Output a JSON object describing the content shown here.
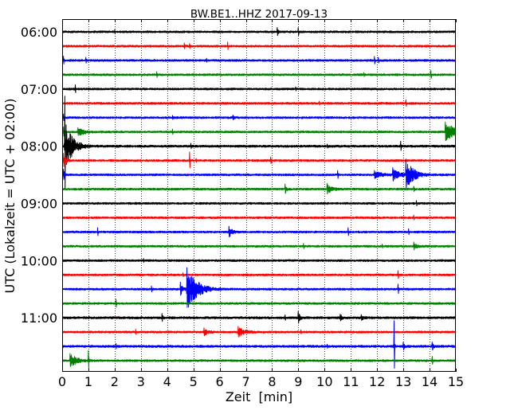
{
  "chart_data": {
    "type": "line",
    "title": "BW.BE1..HHZ 2017-09-13",
    "xlabel": "Zeit  [min]",
    "ylabel": "UTC (Lokalzeit = UTC + 02:00)",
    "xlim": [
      0,
      15
    ],
    "xticks": [
      0,
      1,
      2,
      3,
      4,
      5,
      6,
      7,
      8,
      9,
      10,
      11,
      12,
      13,
      14,
      15
    ],
    "yticks": [
      "06:00",
      "07:00",
      "08:00",
      "09:00",
      "10:00",
      "11:00"
    ],
    "grid": {
      "x": true,
      "y": false
    },
    "series": [
      {
        "color": "#000000",
        "noise": 0.07,
        "events": [
          {
            "t": 2.0,
            "amp": 0.15,
            "dur": 0.05
          },
          {
            "t": 8.2,
            "amp": 0.3,
            "dur": 0.12
          },
          {
            "t": 9.0,
            "amp": 0.3,
            "dur": 0.1
          }
        ]
      },
      {
        "color": "#ff0000",
        "noise": 0.07,
        "events": [
          {
            "t": 4.65,
            "amp": 0.22,
            "dur": 0.08
          },
          {
            "t": 4.85,
            "amp": 0.18,
            "dur": 0.06
          },
          {
            "t": 6.3,
            "amp": 0.28,
            "dur": 0.06
          }
        ]
      },
      {
        "color": "#0000ff",
        "noise": 0.07,
        "events": [
          {
            "t": 0.05,
            "amp": 0.3,
            "dur": 0.06
          },
          {
            "t": 0.9,
            "amp": 0.22,
            "dur": 0.06
          },
          {
            "t": 5.5,
            "amp": 0.15,
            "dur": 0.05
          },
          {
            "t": 11.9,
            "amp": 0.28,
            "dur": 0.06
          },
          {
            "t": 12.05,
            "amp": 0.22,
            "dur": 0.05
          }
        ]
      },
      {
        "color": "#008000",
        "noise": 0.07,
        "events": [
          {
            "t": 3.6,
            "amp": 0.22,
            "dur": 0.06
          },
          {
            "t": 11.5,
            "amp": 0.15,
            "dur": 0.05
          },
          {
            "t": 14.05,
            "amp": 0.3,
            "dur": 0.1
          }
        ]
      },
      {
        "color": "#000000",
        "noise": 0.07,
        "events": [
          {
            "t": 0.5,
            "amp": 0.3,
            "dur": 0.06
          },
          {
            "t": 8.9,
            "amp": 0.15,
            "dur": 0.05
          }
        ]
      },
      {
        "color": "#ff0000",
        "noise": 0.07,
        "events": [
          {
            "t": 9.8,
            "amp": 0.15,
            "dur": 0.05
          },
          {
            "t": 13.1,
            "amp": 0.25,
            "dur": 0.06
          }
        ]
      },
      {
        "color": "#0000ff",
        "noise": 0.07,
        "events": [
          {
            "t": 0.05,
            "amp": 0.25,
            "dur": 0.05
          },
          {
            "t": 4.2,
            "amp": 0.15,
            "dur": 0.05
          },
          {
            "t": 6.5,
            "amp": 0.18,
            "dur": 0.4
          }
        ]
      },
      {
        "color": "#008000",
        "noise": 0.07,
        "events": [
          {
            "t": 0.05,
            "amp": 0.35,
            "dur": 0.1
          },
          {
            "t": 0.6,
            "amp": 0.3,
            "dur": 1.0
          },
          {
            "t": 4.2,
            "amp": 0.2,
            "dur": 0.05
          },
          {
            "t": 14.6,
            "amp": 0.7,
            "dur": 1.5
          }
        ]
      },
      {
        "color": "#000000",
        "noise": 0.08,
        "events": [
          {
            "t": 0.1,
            "amp": 3.5,
            "dur": 0.04
          },
          {
            "t": 0.15,
            "amp": 1.5,
            "dur": 0.9
          },
          {
            "t": 4.9,
            "amp": 0.2,
            "dur": 0.05
          },
          {
            "t": 10.1,
            "amp": 0.15,
            "dur": 0.05
          },
          {
            "t": 12.9,
            "amp": 0.35,
            "dur": 0.06
          }
        ]
      },
      {
        "color": "#ff0000",
        "noise": 0.07,
        "events": [
          {
            "t": 0.05,
            "amp": 0.5,
            "dur": 0.3
          },
          {
            "t": 4.85,
            "amp": 0.6,
            "dur": 0.06
          },
          {
            "t": 5.1,
            "amp": 0.15,
            "dur": 0.05
          },
          {
            "t": 7.95,
            "amp": 0.25,
            "dur": 0.06
          }
        ]
      },
      {
        "color": "#0000ff",
        "noise": 0.07,
        "events": [
          {
            "t": 0.05,
            "amp": 0.4,
            "dur": 0.2
          },
          {
            "t": 10.5,
            "amp": 0.3,
            "dur": 0.1
          },
          {
            "t": 11.9,
            "amp": 0.3,
            "dur": 1.0
          },
          {
            "t": 12.6,
            "amp": 0.5,
            "dur": 0.8
          },
          {
            "t": 13.1,
            "amp": 1.1,
            "dur": 0.9
          }
        ]
      },
      {
        "color": "#008000",
        "noise": 0.07,
        "events": [
          {
            "t": 8.5,
            "amp": 0.35,
            "dur": 0.2
          },
          {
            "t": 10.1,
            "amp": 0.4,
            "dur": 0.6
          },
          {
            "t": 13.4,
            "amp": 0.2,
            "dur": 0.06
          }
        ]
      },
      {
        "color": "#000000",
        "noise": 0.07,
        "events": [
          {
            "t": 13.5,
            "amp": 0.2,
            "dur": 0.06
          }
        ]
      },
      {
        "color": "#ff0000",
        "noise": 0.07,
        "events": [
          {
            "t": 13.4,
            "amp": 0.18,
            "dur": 0.06
          }
        ]
      },
      {
        "color": "#0000ff",
        "noise": 0.07,
        "events": [
          {
            "t": 1.35,
            "amp": 0.3,
            "dur": 0.06
          },
          {
            "t": 6.35,
            "amp": 0.4,
            "dur": 0.45
          },
          {
            "t": 10.9,
            "amp": 0.3,
            "dur": 0.06
          },
          {
            "t": 13.2,
            "amp": 0.22,
            "dur": 0.06
          }
        ]
      },
      {
        "color": "#008000",
        "noise": 0.07,
        "events": [
          {
            "t": 9.2,
            "amp": 0.2,
            "dur": 0.06
          },
          {
            "t": 12.2,
            "amp": 0.15,
            "dur": 0.05
          },
          {
            "t": 13.4,
            "amp": 0.3,
            "dur": 0.4
          }
        ]
      },
      {
        "color": "#000000",
        "noise": 0.07,
        "events": [
          {
            "t": 3.1,
            "amp": 0.15,
            "dur": 0.05
          }
        ]
      },
      {
        "color": "#ff0000",
        "noise": 0.07,
        "events": [
          {
            "t": 4.6,
            "amp": 0.15,
            "dur": 0.05
          },
          {
            "t": 12.8,
            "amp": 0.3,
            "dur": 0.06
          }
        ]
      },
      {
        "color": "#0000ff",
        "noise": 0.07,
        "events": [
          {
            "t": 3.4,
            "amp": 0.22,
            "dur": 0.06
          },
          {
            "t": 4.5,
            "amp": 0.5,
            "dur": 0.3
          },
          {
            "t": 4.75,
            "amp": 1.5,
            "dur": 1.2
          },
          {
            "t": 12.8,
            "amp": 0.35,
            "dur": 0.06
          }
        ]
      },
      {
        "color": "#008000",
        "noise": 0.07,
        "events": [
          {
            "t": 2.05,
            "amp": 0.3,
            "dur": 0.06
          },
          {
            "t": 8.0,
            "amp": 0.12,
            "dur": 0.05
          }
        ]
      },
      {
        "color": "#000000",
        "noise": 0.08,
        "events": [
          {
            "t": 3.8,
            "amp": 0.3,
            "dur": 0.15
          },
          {
            "t": 8.5,
            "amp": 0.2,
            "dur": 0.06
          },
          {
            "t": 9.0,
            "amp": 0.45,
            "dur": 0.2
          },
          {
            "t": 10.6,
            "amp": 0.25,
            "dur": 0.3
          },
          {
            "t": 11.4,
            "amp": 0.22,
            "dur": 0.3
          }
        ]
      },
      {
        "color": "#ff0000",
        "noise": 0.07,
        "events": [
          {
            "t": 2.8,
            "amp": 0.2,
            "dur": 0.06
          },
          {
            "t": 5.4,
            "amp": 0.3,
            "dur": 0.6
          },
          {
            "t": 6.7,
            "amp": 0.4,
            "dur": 0.9
          },
          {
            "t": 9.1,
            "amp": 0.15,
            "dur": 0.05
          }
        ]
      },
      {
        "color": "#0000ff",
        "noise": 0.08,
        "events": [
          {
            "t": 2.05,
            "amp": 0.2,
            "dur": 0.06
          },
          {
            "t": 10.1,
            "amp": 0.15,
            "dur": 0.05
          },
          {
            "t": 12.65,
            "amp": 1.8,
            "dur": 0.04
          },
          {
            "t": 13.0,
            "amp": 0.3,
            "dur": 0.15
          },
          {
            "t": 14.1,
            "amp": 0.3,
            "dur": 0.25
          }
        ]
      },
      {
        "color": "#008000",
        "noise": 0.07,
        "events": [
          {
            "t": 0.3,
            "amp": 0.5,
            "dur": 1.0
          },
          {
            "t": 1.0,
            "amp": 0.7,
            "dur": 0.06
          },
          {
            "t": 14.1,
            "amp": 0.3,
            "dur": 0.06
          }
        ]
      }
    ]
  }
}
